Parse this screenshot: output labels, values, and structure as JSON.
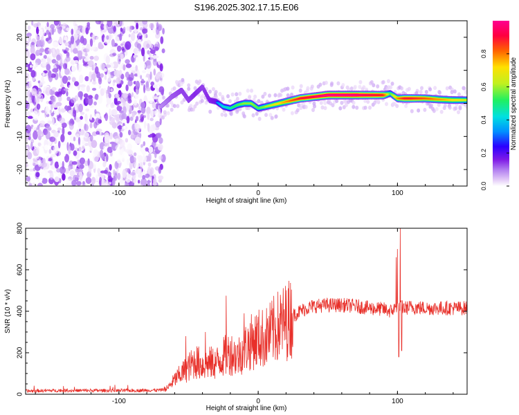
{
  "figure_title": "S196.2025.302.17.15.E06",
  "chart_data": [
    {
      "type": "heatmap",
      "title": "S196.2025.302.17.15.E06",
      "xlabel": "Height of straight line (km)",
      "ylabel": "Frequency (Hz)",
      "xlim": [
        -167,
        150
      ],
      "ylim": [
        -25,
        25
      ],
      "x_ticks": [
        -100,
        0,
        100
      ],
      "y_ticks": [
        -20,
        -10,
        0,
        10,
        20
      ],
      "colorbar": {
        "label": "Normalized spectral amplitude",
        "range": [
          0,
          1
        ],
        "ticks": [
          0.0,
          0.2,
          0.4,
          0.6,
          0.8
        ],
        "colors": [
          "#ffffff",
          "#e2c8f7",
          "#b07cf0",
          "#7f1ae6",
          "#2a00ff",
          "#0090ff",
          "#00e0e0",
          "#20f060",
          "#c0f020",
          "#ffe000",
          "#ff6000",
          "#ff0040",
          "#ff0090"
        ]
      },
      "noise_region_x": [
        -167,
        -68
      ],
      "ridge": {
        "x": [
          -70,
          -62,
          -55,
          -50,
          -45,
          -40,
          -35,
          -30,
          -25,
          -20,
          -15,
          -10,
          -5,
          0,
          5,
          10,
          15,
          20,
          25,
          30,
          40,
          50,
          60,
          70,
          80,
          90,
          95,
          100,
          105,
          110,
          120,
          130,
          140,
          150
        ],
        "freq": [
          -1,
          2,
          4,
          1,
          3,
          5,
          1,
          0.5,
          -1,
          -1.5,
          -0.5,
          0,
          0,
          -1.5,
          -1,
          -0.5,
          0,
          0.5,
          1,
          1.5,
          2,
          2.5,
          2.5,
          2.5,
          2.5,
          2.5,
          3,
          1.5,
          1.5,
          1.5,
          1.5,
          1.2,
          1,
          1
        ],
        "amplitude": [
          0.15,
          0.25,
          0.3,
          0.3,
          0.35,
          0.3,
          0.35,
          0.4,
          0.5,
          0.55,
          0.6,
          0.65,
          0.65,
          0.6,
          0.65,
          0.7,
          0.75,
          0.8,
          0.85,
          0.9,
          0.95,
          1.0,
          1.0,
          1.0,
          0.95,
          0.9,
          0.6,
          0.8,
          0.9,
          0.9,
          0.85,
          0.8,
          0.75,
          0.7
        ]
      }
    },
    {
      "type": "line",
      "xlabel": "Height of straight line (km)",
      "ylabel": "SNR (10 * v/v)",
      "xlim": [
        -167,
        150
      ],
      "ylim": [
        0,
        800
      ],
      "x_ticks": [
        -100,
        0,
        100
      ],
      "y_ticks": [
        0,
        200,
        400,
        600,
        800
      ],
      "series": [
        {
          "name": "SNR",
          "color": "#e8302a",
          "envelope_x": [
            -167,
            -150,
            -120,
            -90,
            -70,
            -65,
            -60,
            -55,
            -50,
            -45,
            -40,
            -35,
            -30,
            -25,
            -20,
            -15,
            -10,
            -5,
            0,
            5,
            10,
            15,
            20,
            25,
            30,
            35,
            40,
            50,
            60,
            70,
            80,
            90,
            95,
            100,
            102,
            104,
            105,
            110,
            120,
            130,
            140,
            150
          ],
          "envelope_y": [
            15,
            18,
            18,
            18,
            20,
            30,
            70,
            100,
            130,
            160,
            140,
            150,
            150,
            180,
            200,
            180,
            220,
            250,
            270,
            270,
            300,
            330,
            350,
            380,
            400,
            415,
            425,
            430,
            430,
            425,
            415,
            410,
            400,
            420,
            420,
            420,
            415,
            420,
            415,
            415,
            415,
            415
          ],
          "spikes": [
            {
              "x": -52,
              "y": 280
            },
            {
              "x": -38,
              "y": 300
            },
            {
              "x": -23,
              "y": 475
            },
            {
              "x": -10,
              "y": 390
            },
            {
              "x": 99,
              "y": 660
            },
            {
              "x": 100,
              "y": 700
            },
            {
              "x": 101,
              "y": 180
            },
            {
              "x": 102,
              "y": 800
            },
            {
              "x": 103,
              "y": 210
            }
          ]
        }
      ]
    }
  ]
}
